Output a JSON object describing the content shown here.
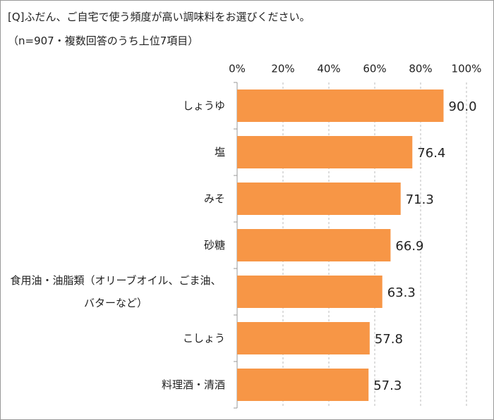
{
  "chart_data": {
    "type": "bar",
    "orientation": "horizontal",
    "title": "[Q]ふだん、ご自宅で使う頻度が高い調味料をお選びください。",
    "subtitle": "（n=907・複数回答のうち上位7項目）",
    "categories": [
      "しょうゆ",
      "塩",
      "みそ",
      "砂糖",
      "食用油・油脂類（オリーブオイル、ごま油、バターなど）",
      "こしょう",
      "料理酒・清酒"
    ],
    "values": [
      90.0,
      76.4,
      71.3,
      66.9,
      63.3,
      57.8,
      57.3
    ],
    "value_labels": [
      "90.0",
      "76.4",
      "71.3",
      "66.9",
      "63.3",
      "57.8",
      "57.3"
    ],
    "color": "#f79646",
    "xlim": [
      0,
      100
    ],
    "xticks": [
      {
        "value": 0,
        "label": "0%"
      },
      {
        "value": 20,
        "label": "20%"
      },
      {
        "value": 40,
        "label": "40%"
      },
      {
        "value": 60,
        "label": "60%"
      },
      {
        "value": 80,
        "label": "80%"
      },
      {
        "value": 100,
        "label": "100%"
      }
    ],
    "grid": true
  }
}
